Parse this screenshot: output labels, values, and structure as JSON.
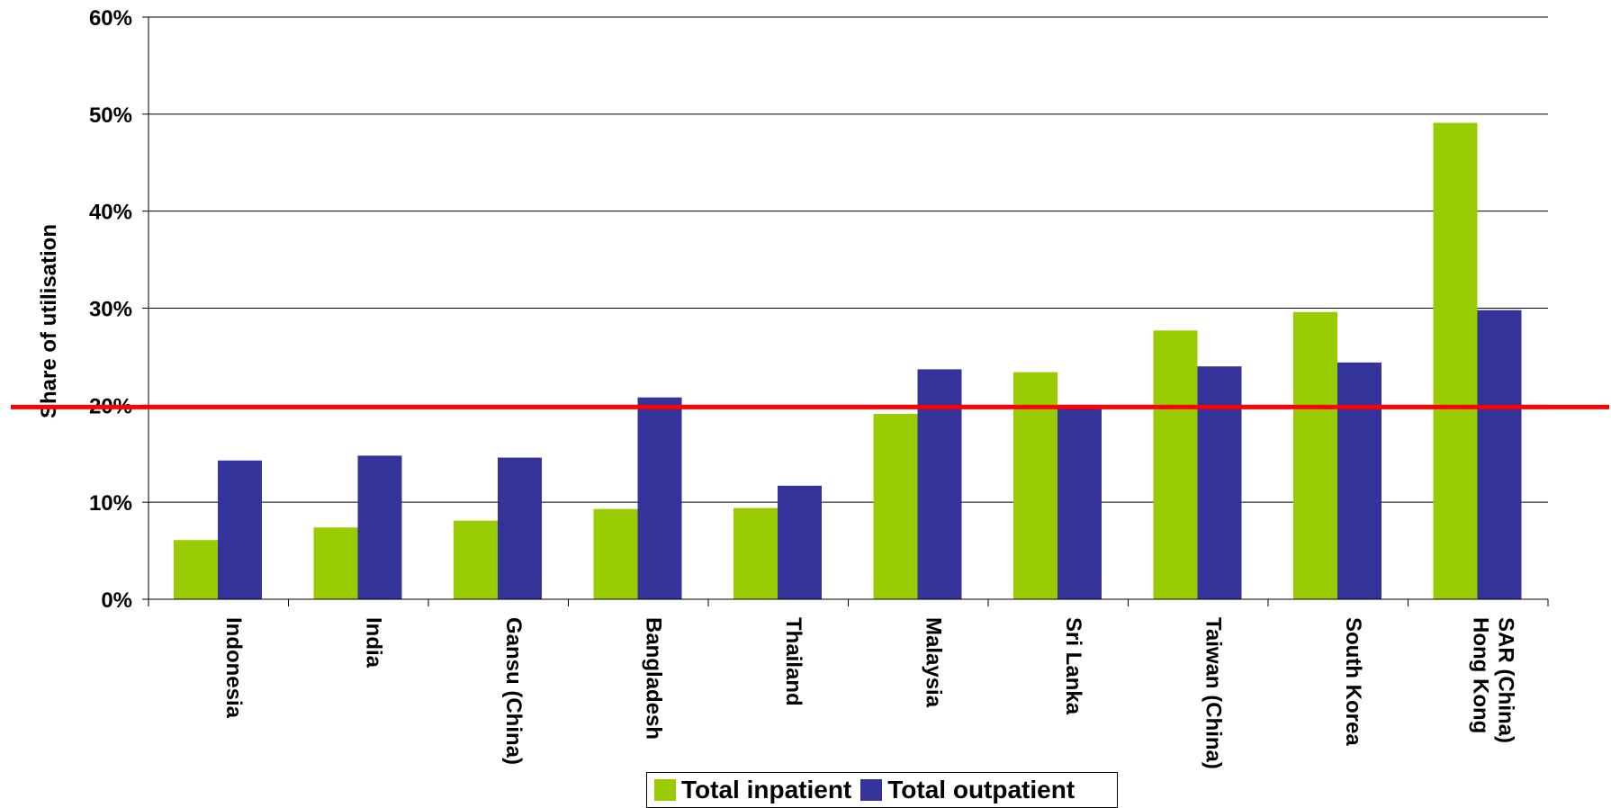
{
  "chart_data": {
    "type": "bar",
    "title": "",
    "xlabel": "",
    "ylabel": "Share of utilisation",
    "ylim": [
      0,
      60
    ],
    "yticks": [
      "0%",
      "10%",
      "20%",
      "30%",
      "40%",
      "50%",
      "60%"
    ],
    "grid": true,
    "legend_position": "bottom",
    "categories": [
      "Indonesia",
      "India",
      "Gansu (China)",
      "Bangladesh",
      "Thailand",
      "Malaysia",
      "Sri Lanka",
      "Taiwan (China)",
      "South Korea",
      "Hong Kong\nSAR (China)"
    ],
    "series": [
      {
        "name": "Total inpatient",
        "color": "#99CC00",
        "values": [
          6.1,
          7.4,
          8.1,
          9.3,
          9.4,
          19.1,
          23.4,
          27.7,
          29.6,
          49.1
        ]
      },
      {
        "name": "Total outpatient",
        "color": "#333399",
        "values": [
          14.3,
          14.8,
          14.6,
          20.8,
          11.7,
          23.7,
          19.7,
          24.0,
          24.4,
          29.8
        ]
      }
    ],
    "reference_line": {
      "value": 20,
      "color": "#FF0000"
    }
  }
}
